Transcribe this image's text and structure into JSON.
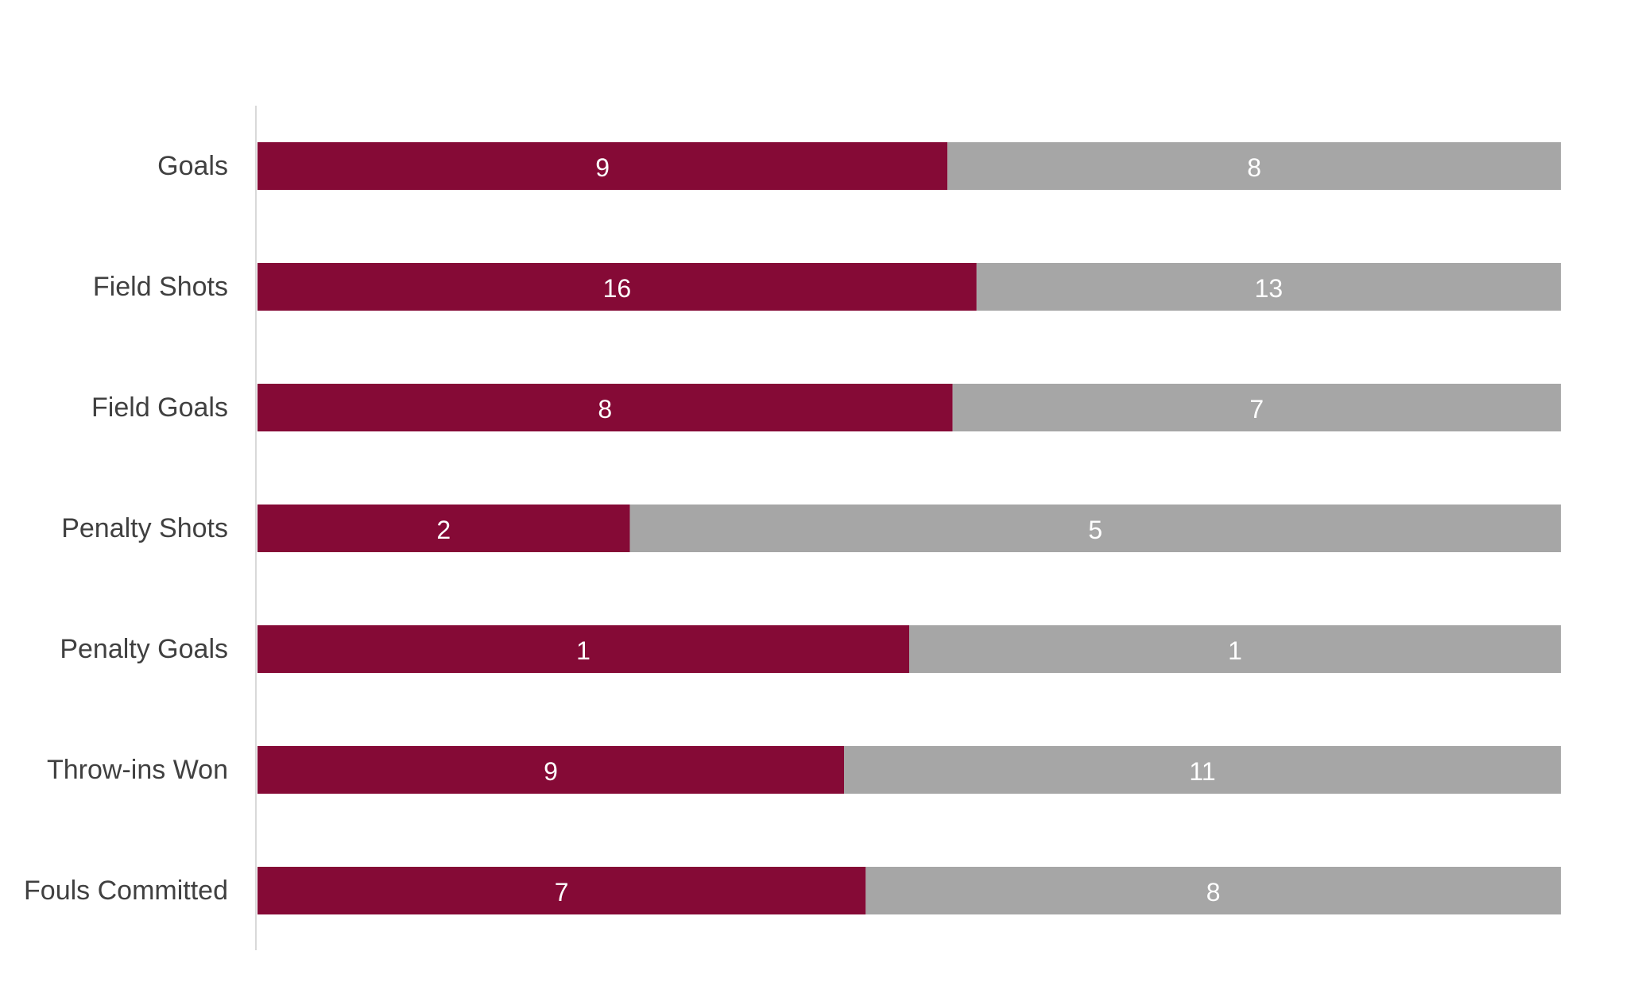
{
  "chart_data": {
    "type": "bar",
    "orientation": "horizontal",
    "stacking": "percent",
    "title": "",
    "xlabel": "",
    "ylabel": "",
    "legend": "none",
    "grid": false,
    "categories": [
      "Goals",
      "Field Shots",
      "Field Goals",
      "Penalty Shots",
      "Penalty Goals",
      "Throw-ins Won",
      "Fouls Committed"
    ],
    "series": [
      {
        "color": "#850a36",
        "values": [
          9,
          16,
          8,
          2,
          1,
          9,
          7
        ]
      },
      {
        "color": "#a6a6a6",
        "values": [
          8,
          13,
          7,
          5,
          1,
          11,
          8
        ]
      }
    ],
    "axis_color": "#d9d9d9",
    "label_color": "#404040",
    "data_label_color": "#ffffff"
  }
}
